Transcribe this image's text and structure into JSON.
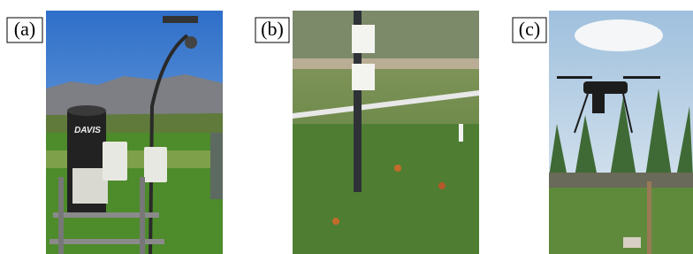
{
  "panels": [
    {
      "label": "(a)",
      "photo_text": "DAVIS"
    },
    {
      "label": "(b)"
    },
    {
      "label": "(c)"
    }
  ]
}
